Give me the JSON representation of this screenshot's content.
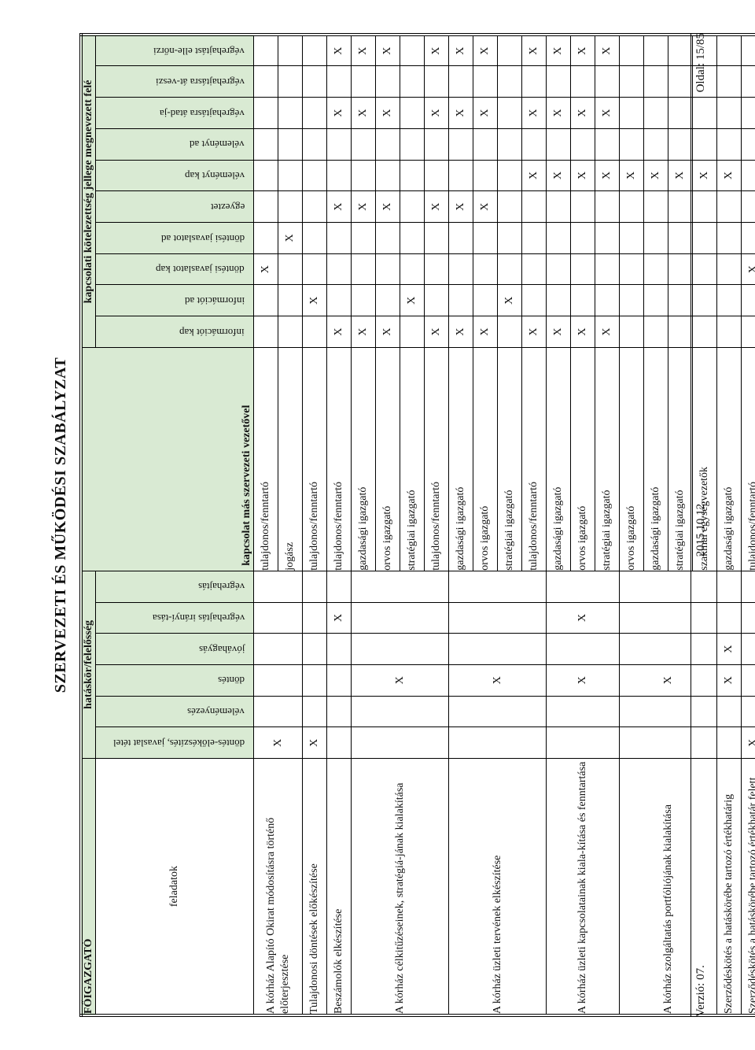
{
  "doc_title": "SZERVEZETI ÉS MŰKÖDÉSI SZABÁLYZAT",
  "section_title": "FŐIGAZGATÓ",
  "tasks_label": "feladatok",
  "group_resp_label": "hatáskör/felelősség",
  "group_leader_label": "kapcsolat más szervezeti vezetővel",
  "group_rel_label": "kapcsolati kötelezettség jellege megnevezett felé",
  "resp_cols": [
    "döntés-előkészítés, javaslat tétel",
    "véleményezés",
    "döntés",
    "jóváhagyás",
    "végrehajtás irányí-tása",
    "végrehajtás"
  ],
  "rel_cols": [
    "információt kap",
    "információt ad",
    "döntési javaslatot kap",
    "döntési javaslatot ad",
    "egyeztet",
    "véleményt kap",
    "véleményt ad",
    "végrehajtásra átad-ja",
    "végrehajtásra át-veszi",
    "végrehajtást elle-nőrzi"
  ],
  "rows": [
    {
      "task": "A kórház Alapító Okirat módosításra történő előterjesztése",
      "task_span": 2,
      "resp": [
        "X",
        "",
        "",
        "",
        "",
        ""
      ],
      "resp_span": 2,
      "sub": [
        {
          "leader": "tulajdonos/fenntartó",
          "rel": [
            "",
            "",
            "X",
            "",
            "",
            "",
            "",
            "",
            "",
            ""
          ]
        },
        {
          "leader": "jogász",
          "rel": [
            "",
            "",
            "",
            "X",
            "",
            "",
            "",
            "",
            "",
            ""
          ]
        }
      ]
    },
    {
      "task": "Tulajdonosi döntések előkészítése",
      "task_span": 1,
      "resp": [
        "X",
        "",
        "",
        "",
        "",
        ""
      ],
      "resp_span": 1,
      "sub": [
        {
          "leader": "tulajdonos/fenntartó",
          "rel": [
            "",
            "X",
            "",
            "",
            "",
            "",
            "",
            "",
            "",
            ""
          ]
        }
      ]
    },
    {
      "task": "Beszámolók elkészítése",
      "task_span": 1,
      "resp": [
        "",
        "",
        "",
        "",
        "X",
        ""
      ],
      "resp_span": 1,
      "sub": [
        {
          "leader": "tulajdonos/fenntartó",
          "rel": [
            "X",
            "",
            "",
            "",
            "X",
            "",
            "",
            "X",
            "",
            "X"
          ]
        }
      ]
    },
    {
      "task": "A kórház célkitűzéseinek, stratégiá-jának kialakítása",
      "task_span": 4,
      "resp": [
        "",
        "",
        "X",
        "",
        "",
        ""
      ],
      "resp_span": 4,
      "sub": [
        {
          "leader": "gazdasági igazgató",
          "rel": [
            "X",
            "",
            "",
            "",
            "X",
            "",
            "",
            "X",
            "",
            "X"
          ]
        },
        {
          "leader": "orvos igazgató",
          "rel": [
            "X",
            "",
            "",
            "",
            "X",
            "",
            "",
            "X",
            "",
            "X"
          ]
        },
        {
          "leader": "stratégiai igazgató",
          "rel": [
            "",
            "X",
            "",
            "",
            "",
            "",
            "",
            "",
            "",
            ""
          ]
        },
        {
          "leader": "tulajdonos/fenntartó",
          "rel": [
            "X",
            "",
            "",
            "",
            "X",
            "",
            "",
            "X",
            "",
            "X"
          ]
        }
      ]
    },
    {
      "task": "A kórház üzleti tervének elkészítése",
      "task_span": 4,
      "resp": [
        "",
        "",
        "X",
        "",
        "",
        ""
      ],
      "resp_span": 4,
      "sub": [
        {
          "leader": "gazdasági igazgató",
          "rel": [
            "X",
            "",
            "",
            "",
            "X",
            "",
            "",
            "X",
            "",
            "X"
          ]
        },
        {
          "leader": "orvos igazgató",
          "rel": [
            "X",
            "",
            "",
            "",
            "X",
            "",
            "",
            "X",
            "",
            "X"
          ]
        },
        {
          "leader": "stratégiai igazgató",
          "rel": [
            "",
            "X",
            "",
            "",
            "",
            "",
            "",
            "",
            "",
            ""
          ]
        },
        {
          "leader": "tulajdonos/fenntartó",
          "rel": [
            "X",
            "",
            "",
            "",
            "",
            "X",
            "",
            "X",
            "",
            "X"
          ]
        }
      ]
    },
    {
      "task": "A kórház üzleti kapcsolatainak kiala-kítása és fenntartása",
      "task_span": 3,
      "resp": [
        "",
        "",
        "X",
        "",
        "X",
        ""
      ],
      "resp_span": 3,
      "sub": [
        {
          "leader": "gazdasági igazgató",
          "rel": [
            "X",
            "",
            "",
            "",
            "",
            "X",
            "",
            "X",
            "",
            "X"
          ]
        },
        {
          "leader": "orvos igazgató",
          "rel": [
            "X",
            "",
            "",
            "",
            "",
            "X",
            "",
            "X",
            "",
            "X"
          ]
        },
        {
          "leader": "stratégiai igazgató",
          "rel": [
            "X",
            "",
            "",
            "",
            "",
            "X",
            "",
            "X",
            "",
            "X"
          ]
        }
      ]
    },
    {
      "task": "A kórház szolgáltatás portfóliójának kialakítása",
      "task_span": 4,
      "resp": [
        "",
        "",
        "X",
        "",
        "",
        ""
      ],
      "resp_span": 4,
      "sub": [
        {
          "leader": "orvos igazgató",
          "rel": [
            "",
            "",
            "",
            "",
            "",
            "X",
            "",
            "",
            "",
            ""
          ]
        },
        {
          "leader": "gazdasági igazgató",
          "rel": [
            "",
            "",
            "",
            "",
            "",
            "X",
            "",
            "",
            "",
            ""
          ]
        },
        {
          "leader": "stratégiai igazgató",
          "rel": [
            "",
            "",
            "",
            "",
            "",
            "X",
            "",
            "",
            "",
            ""
          ]
        },
        {
          "leader": "szakmai egységvezetők",
          "rel": [
            "",
            "",
            "",
            "",
            "",
            "X",
            "",
            "",
            "",
            ""
          ]
        }
      ]
    },
    {
      "task": "Szerződéskötés a hatáskörébe tartozó értékhatárig",
      "task_span": 1,
      "resp": [
        "",
        "",
        "X",
        "X",
        "",
        ""
      ],
      "resp_span": 1,
      "sub": [
        {
          "leader": "gazdasági igazgató",
          "rel": [
            "",
            "",
            "",
            "",
            "",
            "X",
            "",
            "",
            "",
            ""
          ]
        }
      ]
    },
    {
      "task": "Szerződéskötés a hatáskörébe tartozó értékhatár felett",
      "task_span": 1,
      "resp": [
        "X",
        "",
        "",
        "",
        "",
        ""
      ],
      "resp_span": 1,
      "sub": [
        {
          "leader": "tulajdonos/fenntartó",
          "rel": [
            "",
            "",
            "X",
            "",
            "",
            "",
            "",
            "",
            "",
            ""
          ]
        }
      ]
    }
  ],
  "footer": {
    "version": "Verzió: 07.",
    "date": "2015.10.12.",
    "page": "Oldal: 15/85"
  },
  "colors": {
    "header_bg": "#d9ead3",
    "border": "#000000",
    "text": "#111111"
  }
}
